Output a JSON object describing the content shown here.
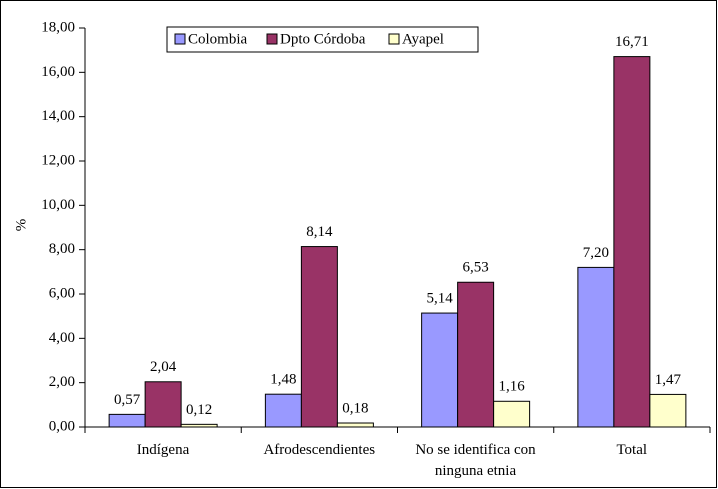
{
  "chart_data": {
    "type": "bar",
    "ylabel": "%",
    "categories": [
      "Indígena",
      "Afrodescendientes",
      "No se identifica con ninguna etnia",
      "Total"
    ],
    "series": [
      {
        "name": "Colombia",
        "color": "#9999ff",
        "values": [
          0.57,
          1.48,
          5.14,
          7.2
        ],
        "value_labels": [
          "0,57",
          "1,48",
          "5,14",
          "7,20"
        ]
      },
      {
        "name": "Dpto Córdoba",
        "color": "#993366",
        "values": [
          2.04,
          8.14,
          6.53,
          16.71
        ],
        "value_labels": [
          "2,04",
          "8,14",
          "6,53",
          "16,71"
        ]
      },
      {
        "name": "Ayapel",
        "color": "#ffffcc",
        "values": [
          0.12,
          0.18,
          1.16,
          1.47
        ],
        "value_labels": [
          "0,12",
          "0,18",
          "1,16",
          "1,47"
        ]
      }
    ],
    "ylim": [
      0,
      18
    ],
    "yticks": [
      {
        "value": 0,
        "label": "0,00"
      },
      {
        "value": 2,
        "label": "2,00"
      },
      {
        "value": 4,
        "label": "4,00"
      },
      {
        "value": 6,
        "label": "6,00"
      },
      {
        "value": 8,
        "label": "8,00"
      },
      {
        "value": 10,
        "label": "10,00"
      },
      {
        "value": 12,
        "label": "12,00"
      },
      {
        "value": 14,
        "label": "14,00"
      },
      {
        "value": 16,
        "label": "16,00"
      },
      {
        "value": 18,
        "label": "18,00"
      }
    ]
  }
}
